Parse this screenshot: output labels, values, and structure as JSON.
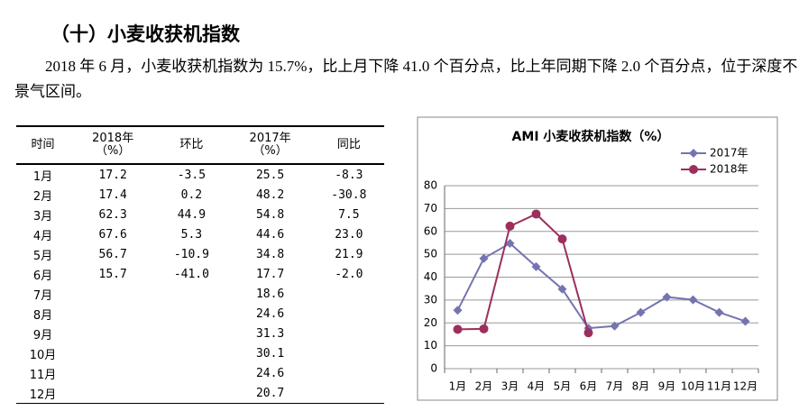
{
  "heading": "（十）小麦收获机指数",
  "paragraph": "2018 年 6 月，小麦收获机指数为 15.7%，比上月下降 41.0 个百分点，比上年同期下降 2.0 个百分点，位于深度不景气区间。",
  "table": {
    "header": [
      "时间",
      "2018年\n（%）",
      "环比",
      "2017年\n（%）",
      "同比"
    ],
    "rows": [
      {
        "month": "1月",
        "y2018": "17.2",
        "mom": "-3.5",
        "y2017": "25.5",
        "yoy": "-8.3"
      },
      {
        "month": "2月",
        "y2018": "17.4",
        "mom": "0.2",
        "y2017": "48.2",
        "yoy": "-30.8"
      },
      {
        "month": "3月",
        "y2018": "62.3",
        "mom": "44.9",
        "y2017": "54.8",
        "yoy": "7.5"
      },
      {
        "month": "4月",
        "y2018": "67.6",
        "mom": "5.3",
        "y2017": "44.6",
        "yoy": "23.0"
      },
      {
        "month": "5月",
        "y2018": "56.7",
        "mom": "-10.9",
        "y2017": "34.8",
        "yoy": "21.9"
      },
      {
        "month": "6月",
        "y2018": "15.7",
        "mom": "-41.0",
        "y2017": "17.7",
        "yoy": "-2.0"
      },
      {
        "month": "7月",
        "y2017": "18.6"
      },
      {
        "month": "8月",
        "y2017": "24.6"
      },
      {
        "month": "9月",
        "y2017": "31.3"
      },
      {
        "month": "10月",
        "y2017": "30.1"
      },
      {
        "month": "11月",
        "y2017": "24.6"
      },
      {
        "month": "12月",
        "y2017": "20.7"
      }
    ]
  },
  "chart_data": {
    "type": "line",
    "title": "AMI 小麦收获机指数（%）",
    "categories": [
      "1月",
      "2月",
      "3月",
      "4月",
      "5月",
      "6月",
      "7月",
      "8月",
      "9月",
      "10月",
      "11月",
      "12月"
    ],
    "series": [
      {
        "name": "2017年",
        "color": "#7474b0",
        "marker": "diamond",
        "values": [
          25.5,
          48.2,
          54.8,
          44.6,
          34.8,
          17.7,
          18.6,
          24.6,
          31.3,
          30.1,
          24.6,
          20.7
        ]
      },
      {
        "name": "2018年",
        "color": "#9c2f5d",
        "marker": "circle",
        "values": [
          17.2,
          17.4,
          62.3,
          67.6,
          56.7,
          15.7,
          null,
          null,
          null,
          null,
          null,
          null
        ]
      }
    ],
    "ylim": [
      0,
      80
    ],
    "yticks": [
      0,
      10,
      20,
      30,
      40,
      50,
      60,
      70,
      80
    ],
    "grid": true,
    "legend": "top-right"
  }
}
